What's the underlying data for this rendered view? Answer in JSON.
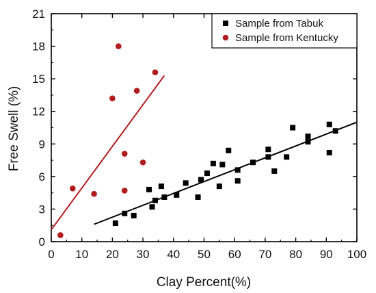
{
  "chart_data": {
    "type": "scatter",
    "xlabel": "Clay Percent(%)",
    "ylabel": "Free Swell (%)",
    "xlim": [
      0,
      100
    ],
    "ylim": [
      0,
      21
    ],
    "xticks": [
      0,
      10,
      20,
      30,
      40,
      50,
      60,
      70,
      80,
      90,
      100
    ],
    "yticks": [
      0,
      3,
      6,
      9,
      12,
      15,
      18,
      21
    ],
    "grid": false,
    "legend_position": "top-right",
    "series": [
      {
        "name": "Sample from Tabuk",
        "marker": "square",
        "color": "#000000",
        "points": [
          [
            21,
            1.7
          ],
          [
            24,
            2.6
          ],
          [
            27,
            2.4
          ],
          [
            32,
            4.8
          ],
          [
            33,
            3.2
          ],
          [
            34,
            3.8
          ],
          [
            36,
            5.1
          ],
          [
            37,
            4.1
          ],
          [
            41,
            4.3
          ],
          [
            44,
            5.4
          ],
          [
            48,
            4.1
          ],
          [
            49,
            5.7
          ],
          [
            51,
            6.3
          ],
          [
            53,
            7.2
          ],
          [
            55,
            5.1
          ],
          [
            56,
            7.1
          ],
          [
            58,
            8.4
          ],
          [
            61,
            6.6
          ],
          [
            61,
            5.6
          ],
          [
            66,
            7.3
          ],
          [
            71,
            8.5
          ],
          [
            71,
            7.8
          ],
          [
            73,
            6.5
          ],
          [
            77,
            7.8
          ],
          [
            79,
            10.5
          ],
          [
            84,
            9.7
          ],
          [
            84,
            9.2
          ],
          [
            91,
            10.8
          ],
          [
            91,
            8.2
          ],
          [
            93,
            10.2
          ]
        ],
        "fit": {
          "x": [
            14,
            100
          ],
          "y": [
            1.6,
            11.0
          ]
        }
      },
      {
        "name": "Sample from Kentucky",
        "marker": "circle",
        "color": "#b01c1c",
        "points": [
          [
            3,
            0.6
          ],
          [
            7,
            4.9
          ],
          [
            14,
            4.4
          ],
          [
            20,
            13.2
          ],
          [
            22,
            18.0
          ],
          [
            24,
            8.1
          ],
          [
            24,
            4.7
          ],
          [
            28,
            13.9
          ],
          [
            30,
            7.3
          ],
          [
            34,
            15.6
          ]
        ],
        "fit": {
          "x": [
            0,
            37
          ],
          "y": [
            1.1,
            15.3
          ]
        }
      }
    ]
  }
}
